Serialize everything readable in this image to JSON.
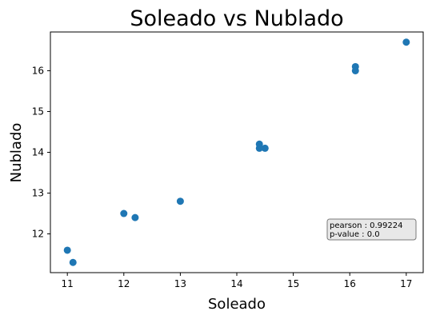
{
  "chart_data": {
    "type": "scatter",
    "title": "Soleado vs Nublado",
    "xlabel": "Soleado",
    "ylabel": "Nublado",
    "xlim": [
      10.7,
      17.3
    ],
    "ylim": [
      11.05,
      16.95
    ],
    "xticks": [
      11,
      12,
      13,
      14,
      15,
      16,
      17
    ],
    "yticks": [
      12,
      13,
      14,
      15,
      16
    ],
    "grid": false,
    "point_color": "#1f77b4",
    "points": [
      {
        "x": 11.0,
        "y": 11.6
      },
      {
        "x": 11.1,
        "y": 11.3
      },
      {
        "x": 12.0,
        "y": 12.5
      },
      {
        "x": 12.2,
        "y": 12.4
      },
      {
        "x": 13.0,
        "y": 12.8
      },
      {
        "x": 14.4,
        "y": 14.2
      },
      {
        "x": 14.4,
        "y": 14.1
      },
      {
        "x": 14.5,
        "y": 14.1
      },
      {
        "x": 16.1,
        "y": 16.1
      },
      {
        "x": 16.1,
        "y": 16.0
      },
      {
        "x": 17.0,
        "y": 16.7
      }
    ],
    "annotation": {
      "lines": [
        "pearson : 0.99224",
        "p-value : 0.0"
      ],
      "placement": "lower-right",
      "background": "#e8e8e8"
    }
  }
}
